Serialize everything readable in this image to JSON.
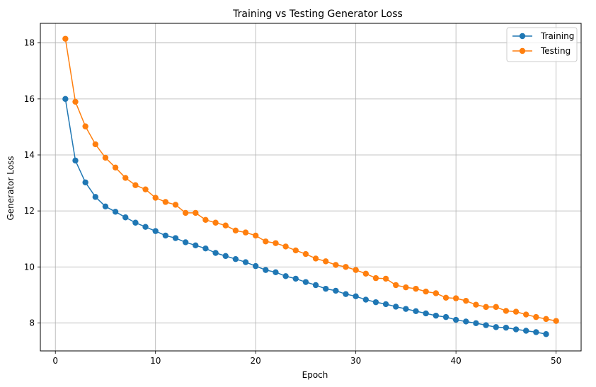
{
  "chart_data": {
    "type": "line",
    "title": "Training vs Testing Generator Loss",
    "xlabel": "Epoch",
    "ylabel": "Generator Loss",
    "xlim": [
      -1.5,
      52.5
    ],
    "ylim": [
      7.0,
      18.7
    ],
    "xticks": [
      0,
      10,
      20,
      30,
      40,
      50
    ],
    "yticks": [
      8,
      10,
      12,
      14,
      16,
      18
    ],
    "grid": true,
    "legend_position": "top-right",
    "series": [
      {
        "name": "Training",
        "color": "#1f77b4",
        "marker": "circle",
        "x": [
          1,
          2,
          3,
          4,
          5,
          6,
          7,
          8,
          9,
          10,
          11,
          12,
          13,
          14,
          15,
          16,
          17,
          18,
          19,
          20,
          21,
          22,
          23,
          24,
          25,
          26,
          27,
          28,
          29,
          30,
          31,
          32,
          33,
          34,
          35,
          36,
          37,
          38,
          39,
          40,
          41,
          42,
          43,
          44,
          45,
          46,
          47,
          48,
          49
        ],
        "values": [
          16.0,
          13.8,
          13.02,
          12.5,
          12.16,
          11.97,
          11.77,
          11.58,
          11.43,
          11.28,
          11.12,
          11.03,
          10.88,
          10.77,
          10.66,
          10.5,
          10.39,
          10.28,
          10.17,
          10.03,
          9.89,
          9.81,
          9.67,
          9.58,
          9.46,
          9.35,
          9.22,
          9.15,
          9.03,
          8.95,
          8.83,
          8.74,
          8.67,
          8.58,
          8.5,
          8.42,
          8.34,
          8.26,
          8.21,
          8.11,
          8.05,
          7.99,
          7.92,
          7.85,
          7.83,
          7.77,
          7.72,
          7.67,
          7.6
        ]
      },
      {
        "name": "Testing",
        "color": "#ff7f0e",
        "marker": "circle",
        "x": [
          1,
          2,
          3,
          4,
          5,
          6,
          7,
          8,
          9,
          10,
          11,
          12,
          13,
          14,
          15,
          16,
          17,
          18,
          19,
          20,
          21,
          22,
          23,
          24,
          25,
          26,
          27,
          28,
          29,
          30,
          31,
          32,
          33,
          34,
          35,
          36,
          37,
          38,
          39,
          40,
          41,
          42,
          43,
          44,
          45,
          46,
          47,
          48,
          49,
          50
        ],
        "values": [
          18.15,
          15.9,
          15.02,
          14.38,
          13.9,
          13.55,
          13.18,
          12.92,
          12.77,
          12.47,
          12.32,
          12.22,
          11.93,
          11.93,
          11.68,
          11.58,
          11.48,
          11.3,
          11.23,
          11.12,
          10.91,
          10.85,
          10.73,
          10.59,
          10.46,
          10.3,
          10.2,
          10.07,
          10.0,
          9.89,
          9.76,
          9.6,
          9.58,
          9.35,
          9.27,
          9.22,
          9.12,
          9.06,
          8.9,
          8.88,
          8.79,
          8.65,
          8.57,
          8.57,
          8.43,
          8.4,
          8.3,
          8.21,
          8.14,
          8.07
        ]
      }
    ]
  }
}
